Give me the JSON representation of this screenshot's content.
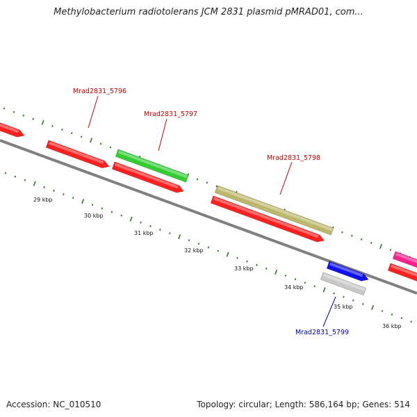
{
  "title": "Methylobacterium radiotolerans JCM 2831 plasmid pMRAD01, com...",
  "footer": {
    "accession": "Accession: NC_010510",
    "topology": "Topology: circular; Length: 586,164 bp; Genes: 514"
  },
  "colors": {
    "backbone": "#808080",
    "tick": "#2a7a1e",
    "label_red": "#cc0000",
    "label_blue": "#0000aa"
  },
  "scale_labels": [
    "29 kbp",
    "30 kbp",
    "31 kbp",
    "32 kbp",
    "33 kbp",
    "34 kbp",
    "35 kbp",
    "36 kbp"
  ],
  "gene_labels": [
    {
      "text": "Mrad2831_5796",
      "color": "#cc0000"
    },
    {
      "text": "Mrad2831_5797",
      "color": "#cc0000"
    },
    {
      "text": "Mrad2831_5798",
      "color": "#cc0000"
    },
    {
      "text": "Mrad2831_5799",
      "color": "#0000aa"
    }
  ],
  "genes": [
    {
      "track": "reverse",
      "color": "#ff2020",
      "name": "gene-red-partial-left"
    },
    {
      "track": "reverse",
      "color": "#ff2020",
      "name": "gene-red-1"
    },
    {
      "track": "forward",
      "color": "#33cc33",
      "name": "gene-green"
    },
    {
      "track": "reverse",
      "color": "#ff2020",
      "name": "gene-red-2"
    },
    {
      "track": "forward",
      "color": "#bdb76b",
      "name": "gene-khaki"
    },
    {
      "track": "reverse",
      "color": "#ff2020",
      "name": "gene-red-3"
    },
    {
      "track": "forward",
      "color": "#1010ee",
      "name": "gene-blue"
    },
    {
      "track": "reverse",
      "color": "#c8c8c8",
      "name": "gene-gray"
    },
    {
      "track": "forward",
      "color": "#ff2090",
      "name": "gene-pink-partial"
    },
    {
      "track": "reverse",
      "color": "#ff2020",
      "name": "gene-red-partial-right"
    }
  ]
}
